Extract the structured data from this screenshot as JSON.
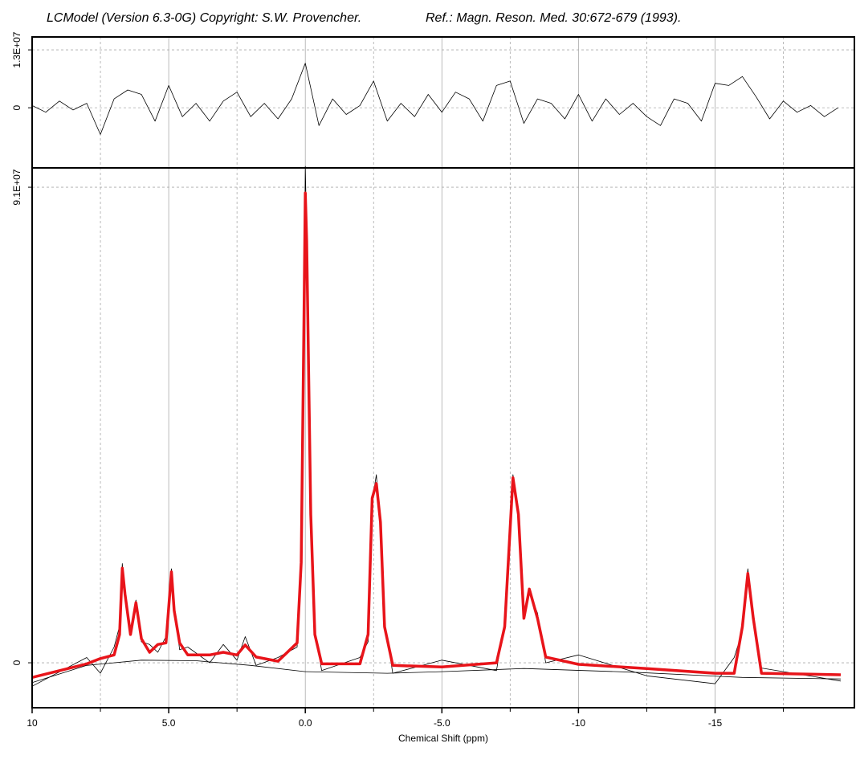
{
  "header": {
    "left": "LCModel (Version 6.3-0G) Copyright: S.W. Provencher.",
    "right": "Ref.: Magn. Reson. Med. 30:672-679 (1993)."
  },
  "chart_data": [
    {
      "type": "line",
      "xlim": [
        10,
        -20.1
      ],
      "ylim": [
        -13500000.0,
        15900000.0
      ],
      "yticks": [
        0,
        {
          "value": 13000000,
          "label": "1.3E+07"
        }
      ],
      "grid": true,
      "series": [
        {
          "color": "#000000",
          "width": 0.8,
          "x": [
            10,
            9.5,
            9,
            8.5,
            8,
            7.5,
            7,
            6.5,
            6,
            5.5,
            5,
            4.5,
            4,
            3.5,
            3,
            2.5,
            2,
            1.5,
            1,
            0.5,
            0,
            -0.5,
            -1,
            -1.5,
            -2,
            -2.5,
            -3,
            -3.5,
            -4,
            -4.5,
            -5,
            -5.5,
            -6,
            -6.5,
            -7,
            -7.5,
            -8,
            -8.5,
            -9,
            -9.5,
            -10,
            -10.5,
            -11,
            -11.5,
            -12,
            -12.5,
            -13,
            -13.5,
            -14,
            -14.5,
            -15,
            -15.5,
            -16,
            -16.5,
            -17,
            -17.5,
            -18,
            -18.5,
            -19,
            -19.5
          ],
          "values": [
            500000.0,
            -1000000.0,
            1500000.0,
            -500000.0,
            1000000.0,
            -6000000.0,
            2000000.0,
            4000000.0,
            3000000.0,
            -3000000.0,
            5000000.0,
            -2000000.0,
            1000000.0,
            -3000000.0,
            1500000.0,
            3500000.0,
            -2000000.0,
            1000000.0,
            -2500000.0,
            2000000.0,
            10000000.0,
            -4000000.0,
            2000000.0,
            -1500000.0,
            500000.0,
            6000000.0,
            -3000000.0,
            1000000.0,
            -2000000.0,
            3000000.0,
            -1000000.0,
            3500000.0,
            2000000.0,
            -3000000.0,
            5000000.0,
            6000000.0,
            -3500000.0,
            2000000.0,
            1000000.0,
            -2500000.0,
            3000000.0,
            -3000000.0,
            2000000.0,
            -1500000.0,
            1000000.0,
            -2000000.0,
            -4000000.0,
            2000000.0,
            1000000.0,
            -3000000.0,
            5500000.0,
            5000000.0,
            7000000.0,
            2500000.0,
            -2500000.0,
            1500000.0,
            -1000000.0,
            500000.0,
            -2000000.0,
            0.0
          ]
        }
      ]
    },
    {
      "type": "line",
      "xlim": [
        10,
        -20.1
      ],
      "ylim": [
        -8600000.0,
        94700000.0
      ],
      "xlabel": "Chemical Shift (ppm)",
      "xticks": [
        10,
        {
          "value": 5,
          "label": "5.0"
        },
        {
          "value": 0,
          "label": "0.0"
        },
        {
          "value": -5,
          "label": "-5.0"
        },
        -10,
        -15
      ],
      "xminor": [
        7.5,
        2.5,
        -2.5,
        -7.5,
        -12.5,
        -17.5
      ],
      "yticks": [
        0,
        {
          "value": 91000000,
          "label": "9.1E+07"
        }
      ],
      "grid": true,
      "series": [
        {
          "color": "#000000",
          "width": 0.8,
          "x": [
            10,
            8,
            7.5,
            7,
            6.8,
            6.7,
            6.6,
            6.4,
            6.2,
            6,
            5.7,
            5.4,
            5.1,
            4.9,
            4.8,
            4.6,
            4.3,
            3.5,
            3,
            2.5,
            2.2,
            1.8,
            1,
            0.3,
            0.15,
            0.05,
            0,
            -0.05,
            -0.2,
            -0.35,
            -0.6,
            -2,
            -2.3,
            -2.45,
            -2.6,
            -2.75,
            -2.9,
            -3.2,
            -5,
            -7,
            -7.3,
            -7.6,
            -7.8,
            -8,
            -8.2,
            -8.5,
            -8.8,
            -10,
            -12.5,
            -15,
            -15.7,
            -16,
            -16.2,
            -16.4,
            -16.7,
            -19.6
          ],
          "values": [
            -4500000.0,
            1000000.0,
            -2000000.0,
            3000000.0,
            7000000.0,
            19000000.0,
            12000000.0,
            6000000.0,
            12000000.0,
            4000000.0,
            3500000.0,
            2000000.0,
            5000000.0,
            18000000.0,
            11000000.0,
            2500000.0,
            3000000.0,
            0.0,
            3500000.0,
            500000.0,
            5000000.0,
            -500000.0,
            1000000.0,
            3000000.0,
            20000000.0,
            67000000.0,
            95000000.0,
            82000000.0,
            27000000.0,
            6000000.0,
            -1500000.0,
            1000000.0,
            4000000.0,
            31000000.0,
            36000000.0,
            25000000.0,
            8000000.0,
            -2000000.0,
            500000.0,
            -1500000.0,
            8000000.0,
            36000000.0,
            29000000.0,
            10000000.0,
            13500000.0,
            9500000.0,
            0.0,
            1500000.0,
            -2500000.0,
            -4000000.0,
            1000000.0,
            6000000.0,
            18000000.0,
            9000000.0,
            -1000000.0,
            -3500000.0
          ]
        },
        {
          "color": "#e8141a",
          "width": 3.5,
          "x": [
            10,
            8,
            7.5,
            7,
            6.8,
            6.7,
            6.6,
            6.4,
            6.2,
            6,
            5.7,
            5.4,
            5.1,
            4.9,
            4.8,
            4.6,
            4.3,
            3.5,
            3,
            2.5,
            2.2,
            1.8,
            1,
            0.3,
            0.15,
            0.05,
            0,
            -0.05,
            -0.2,
            -0.35,
            -0.6,
            -2,
            -2.3,
            -2.45,
            -2.6,
            -2.75,
            -2.9,
            -3.2,
            -5,
            -7,
            -7.3,
            -7.6,
            -7.8,
            -8,
            -8.2,
            -8.5,
            -8.8,
            -10,
            -12.5,
            -15,
            -15.7,
            -16,
            -16.2,
            -16.4,
            -16.7,
            -19.6
          ],
          "values": [
            -2800000.0,
            -200000.0,
            800000.0,
            1500000.0,
            5400000.0,
            18100000.0,
            13100000.0,
            5400000.0,
            11500000.0,
            4600000.0,
            2000000.0,
            3500000.0,
            3800000.0,
            17400000.0,
            10000000.0,
            3800000.0,
            1500000.0,
            1500000.0,
            2000000.0,
            1500000.0,
            3400000.0,
            1100000.0,
            300000.0,
            3800000.0,
            19200000.0,
            65300000.0,
            89900000.0,
            80700000.0,
            28400000.0,
            5400000.0,
            -200000.0,
            -200000.0,
            5400000.0,
            31500000.0,
            34300000.0,
            26900000.0,
            6900000.0,
            -500000.0,
            -800000.0,
            0,
            6900000.0,
            35400000.0,
            28400000.0,
            8500000.0,
            14100000.0,
            8500000.0,
            1100000.0,
            -300000.0,
            -1100000.0,
            -2000000.0,
            -2000000.0,
            6900000.0,
            17100000.0,
            8500000.0,
            -2000000.0,
            -2300000.0
          ]
        },
        {
          "color": "#000000",
          "width": 0.8,
          "x": [
            10,
            8,
            6,
            4,
            2,
            0,
            -3,
            -5,
            -8,
            -12,
            -16,
            -19.6
          ],
          "values": [
            -3800000.0,
            -500000.0,
            500000.0,
            400000.0,
            -500000.0,
            -1700000.0,
            -2000000.0,
            -1700000.0,
            -1100000.0,
            -1800000.0,
            -2800000.0,
            -3100000.0
          ]
        }
      ]
    }
  ]
}
